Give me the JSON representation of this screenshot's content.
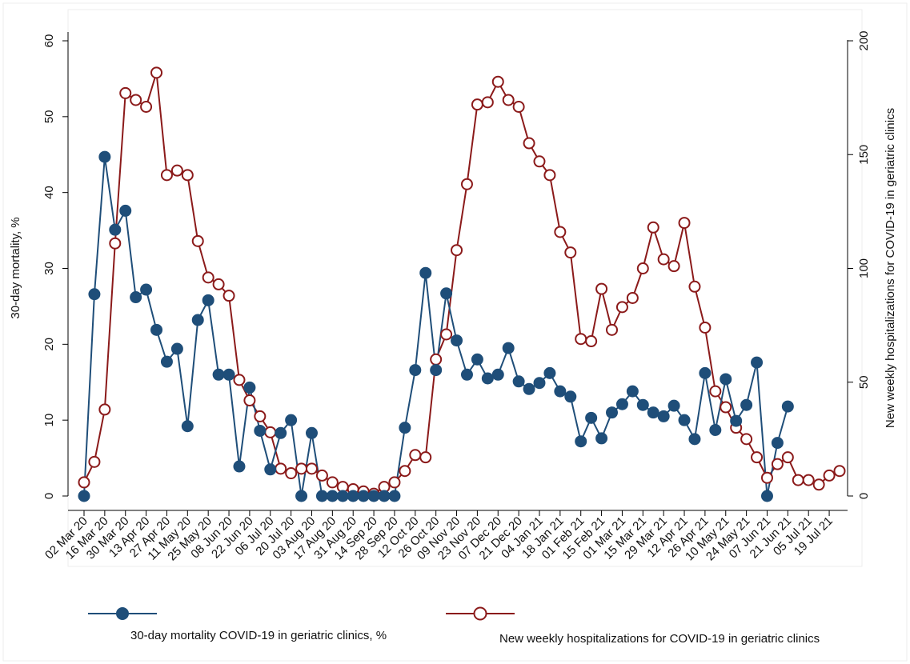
{
  "chart_data": {
    "type": "line",
    "colors": {
      "mortality": "#1f4e79",
      "hospitalizations": "#8b1a1a",
      "frame": "#eeeeee"
    },
    "y_left": {
      "label": "30-day mortality, %",
      "ticks": [
        0,
        10,
        20,
        30,
        40,
        50,
        60
      ],
      "tick_labels": [
        "0",
        "10",
        "20",
        "30",
        "40",
        "50",
        "60"
      ],
      "ylim": [
        0,
        60
      ]
    },
    "y_right": {
      "label": "New weekly hospitalizations for COVID-19 in geriatric clinics",
      "ticks": [
        0,
        50,
        100,
        150,
        200
      ],
      "tick_labels": [
        "0",
        "50",
        "100",
        "150",
        "200"
      ],
      "ylim": [
        0,
        200
      ]
    },
    "x_labels": [
      "02 Mar 20",
      "16 Mar 20",
      "30 Mar 20",
      "13 Apr 20",
      "27 Apr 20",
      "11 May 20",
      "25 May 20",
      "08 Jun 20",
      "22 Jun 20",
      "06 Jul 20",
      "20 Jul 20",
      "03 Aug 20",
      "17 Aug 20",
      "31 Aug 20",
      "14 Sep 20",
      "28 Sep 20",
      "12 Oct 20",
      "26 Oct 20",
      "09 Nov 20",
      "23 Nov 20",
      "07 Dec 20",
      "21 Dec 20",
      "04 Jan 21",
      "18 Jan 21",
      "01 Feb 21",
      "15 Feb 21",
      "01 Mar 21",
      "15 Mar 21",
      "29 Mar 21",
      "12 Apr 21",
      "26 Apr 21",
      "10 May 21",
      "24 May 21",
      "07 Jun 21",
      "21 Jun 21",
      "05 Jul 21",
      "19 Jul 21"
    ],
    "n_weeks": 74,
    "series": [
      {
        "name": "30-day mortality COVID-19 in geriatric clinics, %",
        "axis": "left",
        "marker": "filled-circle",
        "values": [
          0,
          26.6,
          44.7,
          35.1,
          37.6,
          26.2,
          27.2,
          21.9,
          17.7,
          19.4,
          9.2,
          23.2,
          25.8,
          16.0,
          16.0,
          3.9,
          14.3,
          8.6,
          3.5,
          8.3,
          10.0,
          0,
          8.3,
          0,
          0,
          0,
          0,
          0,
          0,
          0,
          0,
          9.0,
          16.6,
          29.4,
          16.6,
          26.7,
          20.5,
          16.0,
          18.0,
          15.5,
          16.0,
          19.5,
          15.1,
          14.1,
          14.9,
          16.2,
          13.8,
          13.1,
          7.2,
          10.3,
          7.6,
          11.0,
          12.1,
          13.8,
          12.0,
          11.0,
          10.5,
          11.9,
          10.0,
          7.5,
          16.2,
          8.7,
          15.4,
          9.9,
          12.0,
          17.6,
          0,
          7.0,
          11.8
        ]
      },
      {
        "name": "New weekly hospitalizations for COVID-19 in geriatric clinics",
        "axis": "right",
        "marker": "hollow-circle",
        "values": [
          6,
          15,
          38,
          111,
          177,
          174,
          171,
          186,
          141,
          143,
          141,
          112,
          96,
          93,
          88,
          51,
          42,
          35,
          28,
          12,
          10,
          12,
          12,
          9,
          6,
          4,
          3,
          2,
          1,
          4,
          6,
          11,
          18,
          17,
          60,
          71,
          108,
          137,
          172,
          173,
          182,
          174,
          171,
          155,
          147,
          141,
          116,
          107,
          69,
          68,
          91,
          73,
          83,
          87,
          100,
          118,
          104,
          101,
          120,
          92,
          74,
          46,
          39,
          30,
          25,
          17,
          8,
          14,
          17,
          7,
          7,
          5,
          9,
          11
        ]
      }
    ],
    "legend_placement": "bottom",
    "grid": false
  }
}
